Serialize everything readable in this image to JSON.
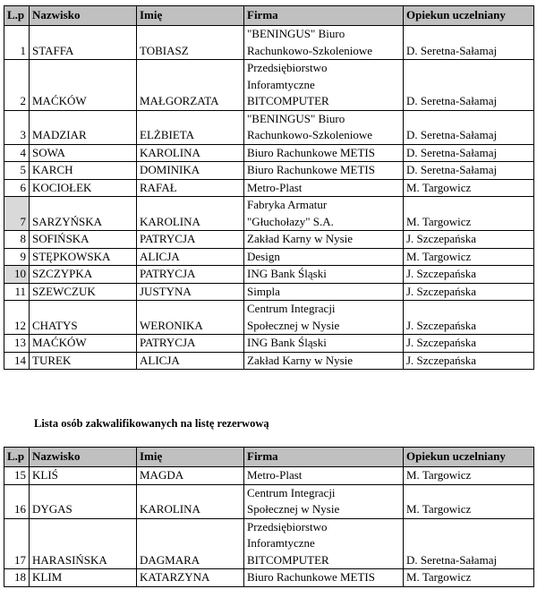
{
  "columns": [
    "L.p",
    "Nazwisko",
    "Imię",
    "Firma",
    "Opiekun uczelniany"
  ],
  "main_list": [
    {
      "lp": "1",
      "nazwisko": "STAFFA",
      "imie": "TOBIASZ",
      "firma": "\"BENINGUS\" Biuro\nRachunkowo-Szkoleniowe",
      "opiekun": "D. Seretna-Sałamaj",
      "lines": 2
    },
    {
      "lp": "2",
      "nazwisko": "MAĆKÓW",
      "imie": "MAŁGORZATA",
      "firma": "Przedsiębiorstwo\nInforamtyczne\nBITCOMPUTER",
      "opiekun": "D. Seretna-Sałamaj",
      "lines": 3
    },
    {
      "lp": "3",
      "nazwisko": "MADZIAR",
      "imie": "ELŻBIETA",
      "firma": "\"BENINGUS\" Biuro\nRachunkowo-Szkoleniowe",
      "opiekun": "D. Seretna-Sałamaj",
      "lines": 2
    },
    {
      "lp": "4",
      "nazwisko": "SOWA",
      "imie": "KAROLINA",
      "firma": "Biuro Rachunkowe METIS",
      "opiekun": "D. Seretna-Sałamaj",
      "lines": 1
    },
    {
      "lp": "5",
      "nazwisko": "KARCH",
      "imie": "DOMINIKA",
      "firma": "Biuro Rachunkowe METIS",
      "opiekun": "D. Seretna-Sałamaj",
      "lines": 1
    },
    {
      "lp": "6",
      "nazwisko": "KOCIOŁEK",
      "imie": "RAFAŁ",
      "firma": "Metro-Plast",
      "opiekun": "M. Targowicz",
      "lines": 1
    },
    {
      "lp": "7",
      "nazwisko": "SARZYŃSKA",
      "imie": "KAROLINA",
      "firma": "Fabryka Armatur\n\"Głuchołazy\" S.A.",
      "opiekun": "M. Targowicz",
      "lines": 2,
      "shaded": true
    },
    {
      "lp": "8",
      "nazwisko": "SOFIŃSKA",
      "imie": "PATRYCJA",
      "firma": "Zakład Karny w Nysie",
      "opiekun": "J. Szczepańska",
      "lines": 1
    },
    {
      "lp": "9",
      "nazwisko": "STĘPKOWSKA",
      "imie": "ALICJA",
      "firma": "Design",
      "opiekun": "M. Targowicz",
      "lines": 1
    },
    {
      "lp": "10",
      "nazwisko": "SZCZYPKA",
      "imie": "PATRYCJA",
      "firma": "ING Bank Śląski",
      "opiekun": "J. Szczepańska",
      "lines": 1,
      "shaded": true
    },
    {
      "lp": "11",
      "nazwisko": "SZEWCZUK",
      "imie": "JUSTYNA",
      "firma": "Simpla",
      "opiekun": "J. Szczepańska",
      "lines": 1
    },
    {
      "lp": "12",
      "nazwisko": "CHATYS",
      "imie": "WERONIKA",
      "firma": "Centrum Integracji\nSpołecznej w Nysie",
      "opiekun": "J. Szczepańska",
      "lines": 2
    },
    {
      "lp": "13",
      "nazwisko": "MAĆKÓW",
      "imie": "PATRYCJA",
      "firma": "ING Bank Śląski",
      "opiekun": "J. Szczepańska",
      "lines": 1
    },
    {
      "lp": "14",
      "nazwisko": "TUREK",
      "imie": "ALICJA",
      "firma": "Zakład Karny w Nysie",
      "opiekun": "J. Szczepańska",
      "lines": 1
    }
  ],
  "reserve_heading": "Lista osób zakwalifikowanych na listę rezerwową",
  "reserve_list": [
    {
      "lp": "15",
      "nazwisko": "KLIŚ",
      "imie": "MAGDA",
      "firma": "Metro-Plast",
      "opiekun": "M. Targowicz",
      "lines": 1
    },
    {
      "lp": "16",
      "nazwisko": "DYGAS",
      "imie": "KAROLINA",
      "firma": "Centrum Integracji\nSpołecznej w Nysie",
      "opiekun": "M. Targowicz",
      "lines": 2
    },
    {
      "lp": "17",
      "nazwisko": "HARASIŃSKA",
      "imie": "DAGMARA",
      "firma": "Przedsiębiorstwo\nInforamtyczne\nBITCOMPUTER",
      "opiekun": "D. Seretna-Sałamaj",
      "lines": 3
    },
    {
      "lp": "18",
      "nazwisko": "KLIM",
      "imie": "KATARZYNA",
      "firma": "Biuro Rachunkowe METIS",
      "opiekun": "M. Targowicz",
      "lines": 1
    }
  ],
  "colors": {
    "header_bg": "#c0c0c0",
    "shaded_cell": "#d9d9d9"
  }
}
